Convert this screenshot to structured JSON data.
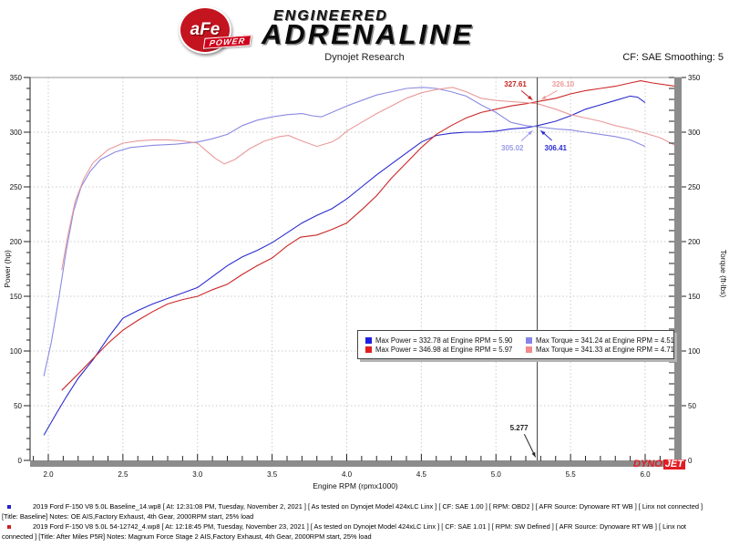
{
  "header": {
    "badge_text": "aFe",
    "badge_sub": "POWER",
    "brand_top": "ENGINEERED",
    "brand_main": "ADRENALINE",
    "title": "Dynojet Research",
    "cf_label": "CF: SAE Smoothing: 5"
  },
  "chart_data": {
    "type": "line",
    "xlabel": "Engine RPM (rpmx1000)",
    "ylabel_left": "Power (hp)",
    "ylabel_right": "Torque (ft-lbs)",
    "xlim": [
      1.88,
      6.24
    ],
    "ylim": [
      0,
      350
    ],
    "grid": true,
    "x_ticks": [
      [
        2,
        "2.0"
      ],
      [
        2.5,
        "2.5"
      ],
      [
        3,
        "3.0"
      ],
      [
        3.5,
        "3.5"
      ],
      [
        4,
        "4.0"
      ],
      [
        4.5,
        "4.5"
      ],
      [
        5,
        "5.0"
      ],
      [
        5.5,
        "5.5"
      ],
      [
        6,
        "6.0"
      ]
    ],
    "y_ticks": [
      [
        0,
        "0"
      ],
      [
        50,
        "50"
      ],
      [
        100,
        "100"
      ],
      [
        150,
        "150"
      ],
      [
        200,
        "200"
      ],
      [
        250,
        "250"
      ],
      [
        300,
        "300"
      ],
      [
        350,
        "350"
      ]
    ],
    "cursor": {
      "x": 5.277,
      "label": "5.277"
    },
    "series": [
      {
        "name": "baseline-power",
        "color": "#2b2bd0",
        "points": [
          [
            1.97,
            23
          ],
          [
            2.05,
            42
          ],
          [
            2.12,
            58
          ],
          [
            2.2,
            75
          ],
          [
            2.3,
            92
          ],
          [
            2.4,
            112
          ],
          [
            2.5,
            130
          ],
          [
            2.6,
            137
          ],
          [
            2.7,
            143
          ],
          [
            2.8,
            148
          ],
          [
            2.9,
            153
          ],
          [
            3.0,
            158
          ],
          [
            3.1,
            168
          ],
          [
            3.2,
            178
          ],
          [
            3.3,
            186
          ],
          [
            3.4,
            192
          ],
          [
            3.5,
            199
          ],
          [
            3.6,
            208
          ],
          [
            3.7,
            217
          ],
          [
            3.8,
            224
          ],
          [
            3.9,
            230
          ],
          [
            4.0,
            239
          ],
          [
            4.1,
            250
          ],
          [
            4.2,
            261
          ],
          [
            4.3,
            271
          ],
          [
            4.4,
            281
          ],
          [
            4.5,
            291
          ],
          [
            4.6,
            297
          ],
          [
            4.7,
            299
          ],
          [
            4.8,
            300
          ],
          [
            4.9,
            300
          ],
          [
            5.0,
            301
          ],
          [
            5.1,
            303
          ],
          [
            5.2,
            304
          ],
          [
            5.28,
            306
          ],
          [
            5.4,
            310
          ],
          [
            5.5,
            315
          ],
          [
            5.6,
            321
          ],
          [
            5.7,
            325
          ],
          [
            5.8,
            329
          ],
          [
            5.9,
            333
          ],
          [
            5.95,
            332
          ],
          [
            6.0,
            327
          ]
        ]
      },
      {
        "name": "modified-power",
        "color": "#cc2626",
        "points": [
          [
            2.09,
            64
          ],
          [
            2.2,
            79
          ],
          [
            2.3,
            93
          ],
          [
            2.4,
            107
          ],
          [
            2.5,
            119
          ],
          [
            2.6,
            128
          ],
          [
            2.7,
            136
          ],
          [
            2.8,
            143
          ],
          [
            2.9,
            147
          ],
          [
            3.0,
            150
          ],
          [
            3.1,
            156
          ],
          [
            3.2,
            161
          ],
          [
            3.3,
            170
          ],
          [
            3.4,
            178
          ],
          [
            3.5,
            185
          ],
          [
            3.6,
            196
          ],
          [
            3.69,
            204
          ],
          [
            3.8,
            206
          ],
          [
            3.9,
            211
          ],
          [
            4.0,
            217
          ],
          [
            4.1,
            229
          ],
          [
            4.2,
            242
          ],
          [
            4.3,
            258
          ],
          [
            4.4,
            272
          ],
          [
            4.5,
            286
          ],
          [
            4.6,
            298
          ],
          [
            4.7,
            306
          ],
          [
            4.8,
            313
          ],
          [
            4.9,
            318
          ],
          [
            5.0,
            321
          ],
          [
            5.1,
            324
          ],
          [
            5.2,
            326
          ],
          [
            5.28,
            328
          ],
          [
            5.4,
            331
          ],
          [
            5.5,
            335
          ],
          [
            5.6,
            338
          ],
          [
            5.7,
            340
          ],
          [
            5.8,
            342
          ],
          [
            5.9,
            345
          ],
          [
            5.97,
            347
          ],
          [
            6.05,
            345
          ],
          [
            6.2,
            342
          ]
        ]
      },
      {
        "name": "baseline-torque",
        "color": "#8a8ae2",
        "points": [
          [
            1.97,
            77
          ],
          [
            2.02,
            108
          ],
          [
            2.07,
            148
          ],
          [
            2.12,
            192
          ],
          [
            2.17,
            228
          ],
          [
            2.22,
            250
          ],
          [
            2.28,
            264
          ],
          [
            2.35,
            275
          ],
          [
            2.45,
            282
          ],
          [
            2.55,
            286
          ],
          [
            2.7,
            288
          ],
          [
            2.85,
            289
          ],
          [
            3.0,
            291
          ],
          [
            3.1,
            294
          ],
          [
            3.2,
            298
          ],
          [
            3.3,
            306
          ],
          [
            3.4,
            311
          ],
          [
            3.5,
            314
          ],
          [
            3.6,
            316
          ],
          [
            3.7,
            317
          ],
          [
            3.77,
            315
          ],
          [
            3.83,
            314
          ],
          [
            3.9,
            318
          ],
          [
            4.0,
            324
          ],
          [
            4.1,
            329
          ],
          [
            4.2,
            334
          ],
          [
            4.3,
            337
          ],
          [
            4.4,
            340
          ],
          [
            4.51,
            341
          ],
          [
            4.6,
            340
          ],
          [
            4.7,
            337
          ],
          [
            4.8,
            333
          ],
          [
            4.9,
            325
          ],
          [
            5.0,
            318
          ],
          [
            5.1,
            309
          ],
          [
            5.2,
            306
          ],
          [
            5.28,
            305
          ],
          [
            5.4,
            303
          ],
          [
            5.5,
            302
          ],
          [
            5.6,
            300
          ],
          [
            5.7,
            298
          ],
          [
            5.8,
            296
          ],
          [
            5.9,
            293
          ],
          [
            6.0,
            287
          ]
        ]
      },
      {
        "name": "modified-torque",
        "color": "#e99a9a",
        "points": [
          [
            2.09,
            174
          ],
          [
            2.13,
            205
          ],
          [
            2.18,
            237
          ],
          [
            2.24,
            258
          ],
          [
            2.3,
            272
          ],
          [
            2.4,
            284
          ],
          [
            2.5,
            290
          ],
          [
            2.6,
            292
          ],
          [
            2.7,
            293
          ],
          [
            2.8,
            293
          ],
          [
            2.9,
            292
          ],
          [
            3.0,
            290
          ],
          [
            3.05,
            284
          ],
          [
            3.12,
            276
          ],
          [
            3.18,
            271
          ],
          [
            3.25,
            275
          ],
          [
            3.35,
            285
          ],
          [
            3.45,
            292
          ],
          [
            3.55,
            296
          ],
          [
            3.61,
            297
          ],
          [
            3.7,
            292
          ],
          [
            3.8,
            287
          ],
          [
            3.9,
            291
          ],
          [
            3.95,
            295
          ],
          [
            4.0,
            301
          ],
          [
            4.1,
            309
          ],
          [
            4.2,
            317
          ],
          [
            4.3,
            324
          ],
          [
            4.4,
            331
          ],
          [
            4.5,
            336
          ],
          [
            4.6,
            339
          ],
          [
            4.71,
            341
          ],
          [
            4.8,
            337
          ],
          [
            4.9,
            331
          ],
          [
            5.0,
            329
          ],
          [
            5.1,
            328
          ],
          [
            5.2,
            327
          ],
          [
            5.28,
            326
          ],
          [
            5.4,
            321
          ],
          [
            5.5,
            316
          ],
          [
            5.6,
            313
          ],
          [
            5.7,
            310
          ],
          [
            5.8,
            306
          ],
          [
            5.9,
            303
          ],
          [
            6.0,
            299
          ],
          [
            6.1,
            295
          ],
          [
            6.2,
            288
          ]
        ]
      }
    ],
    "annotations": [
      {
        "text": "327.61",
        "color": "#c42222",
        "label_at": [
          5.13,
          344
        ],
        "arrow": [
          [
            5.17,
            338
          ],
          [
            5.245,
            329.5
          ]
        ]
      },
      {
        "text": "326.10",
        "color": "#ee9a9a",
        "label_at": [
          5.45,
          344
        ],
        "arrow": [
          [
            5.41,
            338
          ],
          [
            5.305,
            330
          ]
        ]
      },
      {
        "text": "305.02",
        "color": "#9a9ae8",
        "label_at": [
          5.11,
          286
        ],
        "arrow": [
          [
            5.17,
            292
          ],
          [
            5.245,
            301.5
          ]
        ]
      },
      {
        "text": "306.41",
        "color": "#2b2bd0",
        "label_at": [
          5.4,
          286
        ],
        "arrow": [
          [
            5.375,
            292.5
          ],
          [
            5.3,
            301.5
          ]
        ]
      },
      {
        "text": "5.277",
        "color": "#222222",
        "label_at": [
          5.155,
          30
        ],
        "arrow": [
          [
            5.19,
            24
          ],
          [
            5.265,
            3
          ]
        ]
      }
    ],
    "legend": {
      "items": [
        {
          "color": "#1f1fe0",
          "text": "Max Power = 332.78 at Engine RPM = 5.90"
        },
        {
          "color": "#8585e8",
          "text": "Max Torque = 341.24 at Engine RPM = 4.51"
        },
        {
          "color": "#e01f1f",
          "text": "Max Power = 346.98 at Engine RPM = 5.97"
        },
        {
          "color": "#f28b8b",
          "text": "Max Torque = 341.33 at Engine RPM = 4.71"
        }
      ]
    }
  },
  "watermark": {
    "dyno": "DYNO",
    "jet": "JET"
  },
  "footer": {
    "runs": [
      {
        "bullet_color": "#2222cc",
        "lines": [
          "2019 Ford F-150 V8 5.0L Baseline_14.wp8 [ At: 12:31:08 PM, Tuesday, November 2, 2021 ] [ As tested on Dynojet Model 424xLC Linx ] [ CF: SAE 1.00 ] [ RPM: OBD2 ] [ AFR Source: Dynoware RT WB ] [ Linx not connected ]",
          "[Title: Baseline]  Notes: OE AIS,Factory Exhaust, 4th Gear, 2000RPM start, 25% load"
        ]
      },
      {
        "bullet_color": "#cc2222",
        "lines": [
          "2019 Ford F-150 V8 5.0L 54-12742_4.wp8 [ At: 12:18:45 PM, Tuesday, November 23, 2021 ] [ As tested on Dynojet Model 424xLC Linx ] [ CF: SAE 1.01 ] [ RPM: SW Defined ] [ AFR Source: Dynoware RT WB ] [ Linx not",
          "connected ] [Title: After Miles P5R]  Notes: Magnum Force Stage 2  AIS,Factory Exhaust, 4th Gear, 2000RPM start, 25% load"
        ]
      }
    ]
  }
}
